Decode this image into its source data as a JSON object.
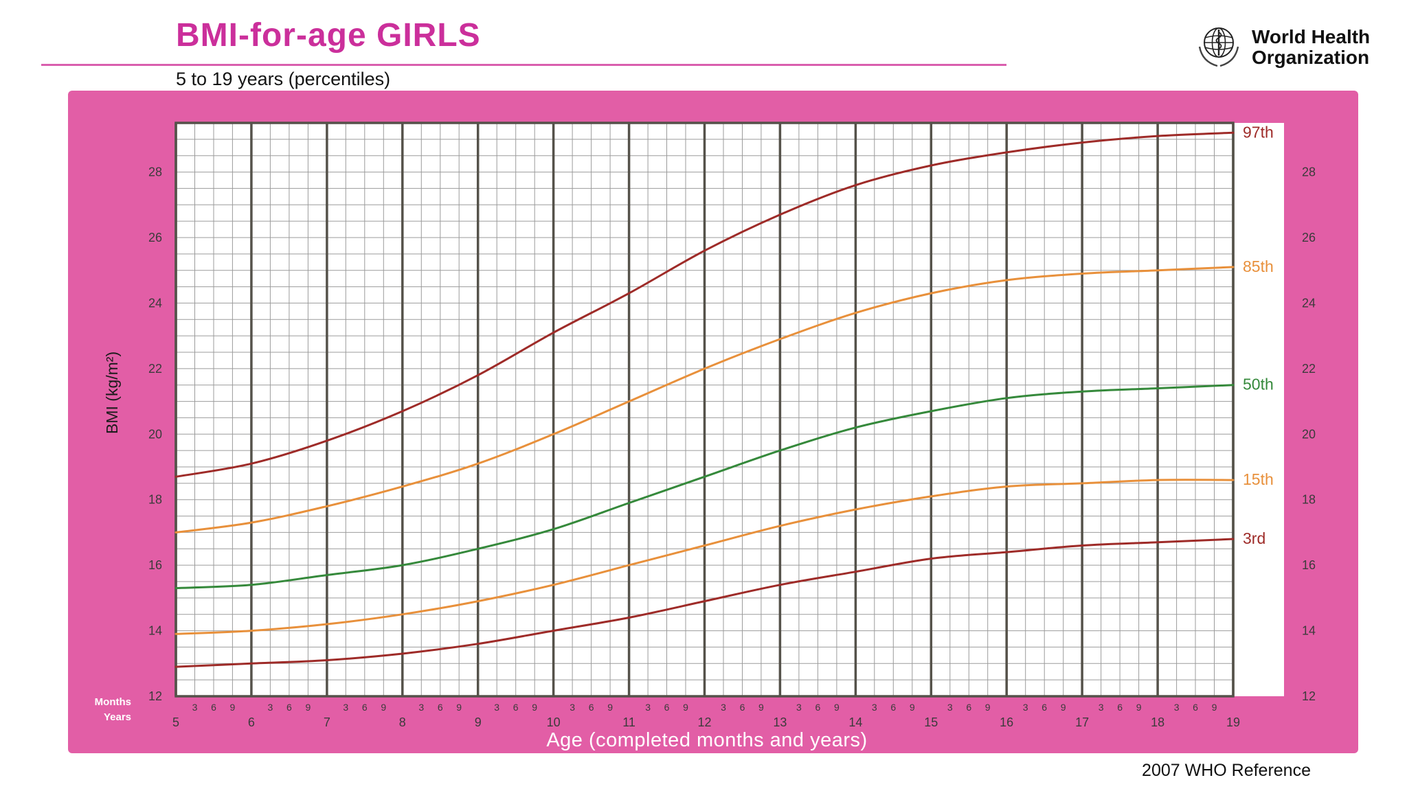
{
  "header": {
    "title": "BMI-for-age  GIRLS",
    "subtitle": "5 to 19 years (percentiles)",
    "who_line1": "World Health",
    "who_line2": "Organization"
  },
  "axes": {
    "y_label": "BMI (kg/m²)",
    "x_label": "Age (completed months and years)",
    "months_label": "Months",
    "years_label": "Years"
  },
  "footer": {
    "reference": "2007 WHO Reference"
  },
  "colors": {
    "panel_pink": "#e25ea6",
    "title_magenta": "#cb2f9b",
    "grid_minor": "#9b9b9b",
    "grid_major": "#55524a",
    "dark_red": "#9e2b28",
    "orange": "#e8903b",
    "green": "#35893b"
  },
  "chart_data": {
    "type": "line",
    "title": "BMI-for-age GIRLS, 5 to 19 years (percentiles)",
    "xlabel": "Age (completed months and years)",
    "ylabel": "BMI (kg/m²)",
    "x": [
      5,
      6,
      7,
      8,
      9,
      10,
      11,
      12,
      13,
      14,
      15,
      16,
      17,
      18,
      19
    ],
    "xlim": [
      5,
      19
    ],
    "ylim": [
      12,
      29.5
    ],
    "y_ticks": [
      12,
      14,
      16,
      18,
      20,
      22,
      24,
      26,
      28
    ],
    "minor_x_months": [
      3,
      6,
      9
    ],
    "grid": true,
    "legend_position": "right-end-labels",
    "series": [
      {
        "name": "97th",
        "color": "#9e2b28",
        "values": [
          18.7,
          19.1,
          19.8,
          20.7,
          21.8,
          23.1,
          24.3,
          25.6,
          26.7,
          27.6,
          28.2,
          28.6,
          28.9,
          29.1,
          29.2
        ]
      },
      {
        "name": "85th",
        "color": "#e8903b",
        "values": [
          17.0,
          17.3,
          17.8,
          18.4,
          19.1,
          20.0,
          21.0,
          22.0,
          22.9,
          23.7,
          24.3,
          24.7,
          24.9,
          25.0,
          25.1
        ]
      },
      {
        "name": "50th",
        "color": "#35893b",
        "values": [
          15.3,
          15.4,
          15.7,
          16.0,
          16.5,
          17.1,
          17.9,
          18.7,
          19.5,
          20.2,
          20.7,
          21.1,
          21.3,
          21.4,
          21.5
        ]
      },
      {
        "name": "15th",
        "color": "#e8903b",
        "values": [
          13.9,
          14.0,
          14.2,
          14.5,
          14.9,
          15.4,
          16.0,
          16.6,
          17.2,
          17.7,
          18.1,
          18.4,
          18.5,
          18.6,
          18.6
        ]
      },
      {
        "name": "3rd",
        "color": "#9e2b28",
        "values": [
          12.9,
          13.0,
          13.1,
          13.3,
          13.6,
          14.0,
          14.4,
          14.9,
          15.4,
          15.8,
          16.2,
          16.4,
          16.6,
          16.7,
          16.8
        ]
      }
    ]
  }
}
